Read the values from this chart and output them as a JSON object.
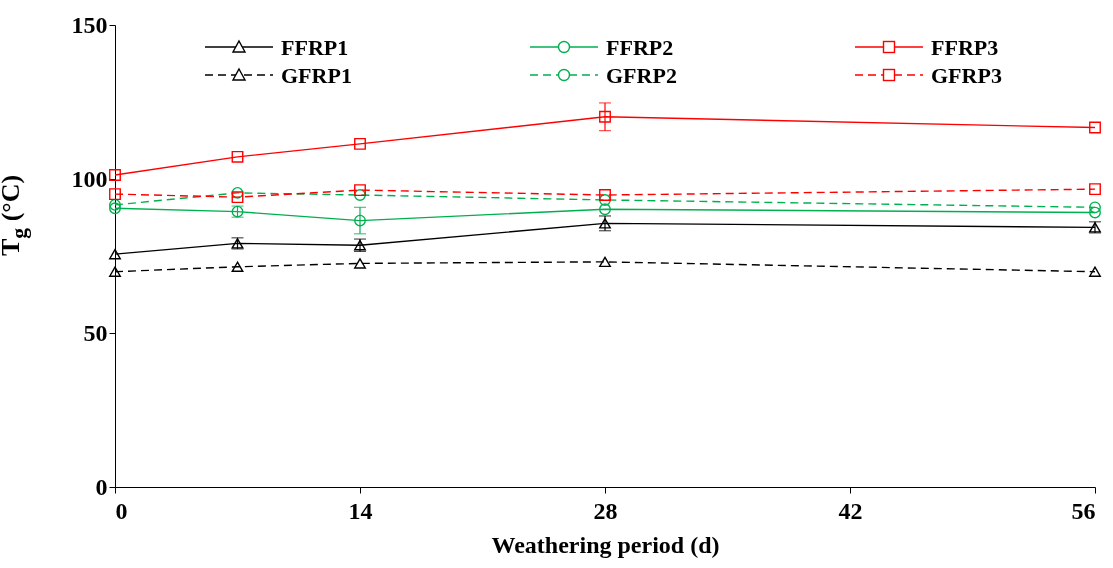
{
  "chart_data": {
    "type": "line",
    "xlabel": "Weathering period (d)",
    "ylabel": "T$_{g}$ (°C)",
    "x": [
      0,
      7,
      14,
      28,
      56
    ],
    "xlim": [
      0,
      56
    ],
    "xticks": [
      0,
      14,
      28,
      42,
      56
    ],
    "ylim": [
      0,
      150
    ],
    "yticks": [
      0,
      50,
      100,
      150
    ],
    "grid": false,
    "legend": "top",
    "series": [
      {
        "name": "FFRP1",
        "color": "#000000",
        "marker": "triangle",
        "line_style": "solid",
        "values": [
          75.6,
          79.1,
          78.5,
          85.6,
          84.3
        ],
        "errors": [
          null,
          1.8,
          2,
          2.4,
          1.8
        ]
      },
      {
        "name": "FFRP2",
        "color": "#00b050",
        "marker": "circle",
        "line_style": "solid",
        "values": [
          90.5,
          89.4,
          86.5,
          90.2,
          89.1
        ],
        "errors": [
          null,
          1.8,
          4.3,
          null,
          null
        ]
      },
      {
        "name": "FFRP3",
        "color": "#ff0000",
        "marker": "square",
        "line_style": "solid",
        "values": [
          101.3,
          107.2,
          111.4,
          120.2,
          116.7
        ],
        "errors": [
          null,
          null,
          null,
          4.5,
          null
        ]
      },
      {
        "name": "GFRP1",
        "color": "#000000",
        "marker": "triangle",
        "line_style": "dashed",
        "values": [
          69.9,
          71.5,
          72.6,
          73.1,
          69.9
        ]
      },
      {
        "name": "GFRP2",
        "color": "#00b050",
        "marker": "circle",
        "line_style": "dashed",
        "values": [
          91.6,
          95.5,
          94.8,
          93.2,
          90.8
        ]
      },
      {
        "name": "GFRP3",
        "color": "#ff0000",
        "marker": "square",
        "line_style": "dashed",
        "values": [
          95.1,
          94.1,
          96.4,
          94.8,
          96.7
        ]
      }
    ]
  }
}
